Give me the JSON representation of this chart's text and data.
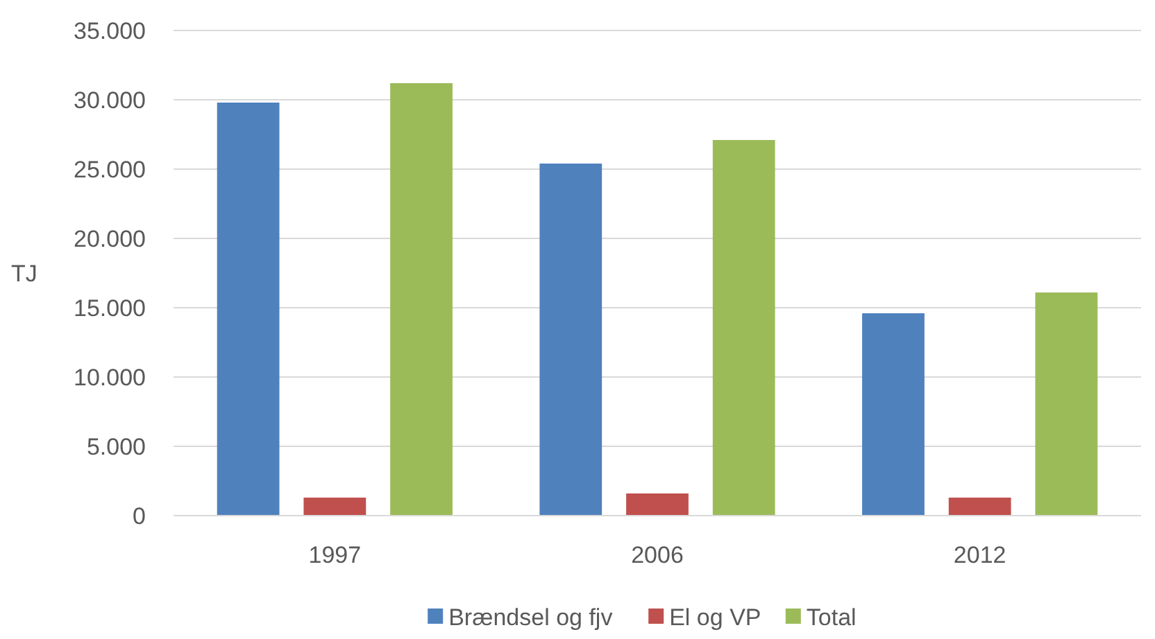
{
  "chart_data": {
    "type": "bar",
    "ylabel": "TJ",
    "categories": [
      "1997",
      "2006",
      "2012"
    ],
    "series": [
      {
        "name": "Brændsel og fjv",
        "color": "#4f81bd",
        "values": [
          29800,
          25400,
          14600
        ]
      },
      {
        "name": "El og VP",
        "color": "#c0504d",
        "values": [
          1300,
          1600,
          1300
        ]
      },
      {
        "name": "Total",
        "color": "#9bbb59",
        "values": [
          31200,
          27100,
          16100
        ]
      }
    ],
    "ylim": [
      0,
      35000
    ],
    "yticks": [
      0,
      {
        "value": 5000,
        "label": "5.000"
      },
      {
        "value": 10000,
        "label": "10.000"
      },
      {
        "value": 15000,
        "label": "15.000"
      },
      {
        "value": 20000,
        "label": "20.000"
      },
      {
        "value": 25000,
        "label": "25.000"
      },
      {
        "value": 30000,
        "label": "30.000"
      },
      {
        "value": 35000,
        "label": "35.000"
      }
    ],
    "grid": "y",
    "legend": "bottom"
  }
}
